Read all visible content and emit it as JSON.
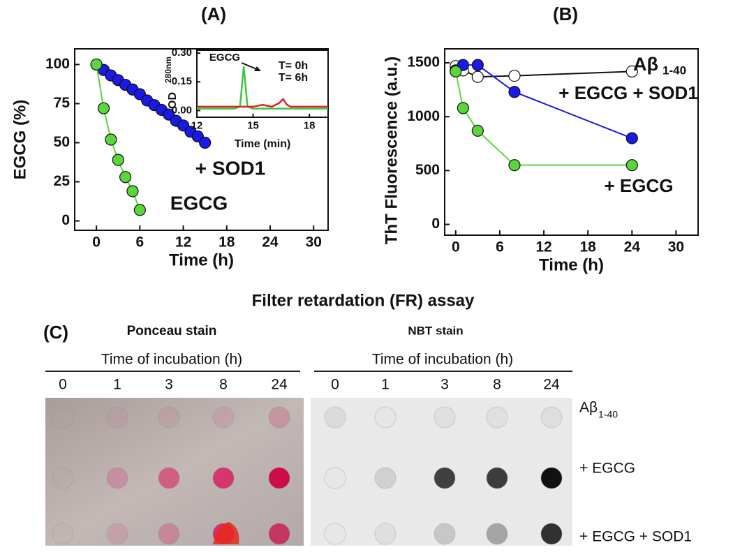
{
  "chart_data": [
    {
      "type": "line",
      "title": "(A)",
      "xlabel": "Time (h)",
      "ylabel": "EGCG (%)",
      "xlim": [
        -3,
        32
      ],
      "ylim": [
        -6,
        110
      ],
      "xticks": [
        0,
        6,
        12,
        18,
        24,
        30
      ],
      "yticks": [
        0,
        25,
        50,
        75,
        100
      ],
      "series": [
        {
          "name": "+ SOD1",
          "color": "#1a1ae6",
          "x": [
            0,
            1,
            2,
            3,
            4,
            5,
            6,
            7,
            8,
            9,
            10,
            11,
            12,
            13,
            14,
            15
          ],
          "values": [
            100,
            96.5,
            93,
            90,
            87,
            84,
            81,
            77,
            74,
            71,
            68,
            64,
            61,
            57,
            54,
            50
          ]
        },
        {
          "name": "EGCG",
          "color": "#5ad63c",
          "x": [
            0,
            1,
            2,
            3,
            4,
            5,
            6
          ],
          "values": [
            100,
            72,
            52,
            39,
            28,
            19,
            7
          ]
        }
      ]
    },
    {
      "type": "line",
      "xlabel": "Time (min)",
      "ylabel": "OD",
      "ylabel_sup": "280nm",
      "annotation": "EGCG",
      "xlim": [
        12,
        19
      ],
      "ylim": [
        -0.035,
        0.315
      ],
      "xticks": [
        12,
        15,
        18
      ],
      "yticks": [
        {
          "value": 0,
          "label": "0.00"
        },
        {
          "value": 0.15,
          "label": "0.15"
        },
        {
          "value": 0.3,
          "label": "0.30"
        }
      ],
      "series": [
        {
          "name": "T= 0h",
          "color": "#3cc83c",
          "x": [
            12,
            13,
            14,
            14.3,
            14.5,
            14.7,
            15,
            16,
            16.5,
            17,
            18,
            19
          ],
          "values": [
            0.01,
            0.01,
            0.01,
            0.02,
            0.23,
            0.02,
            0.01,
            0.01,
            0.01,
            0.01,
            0.01,
            0.01
          ]
        },
        {
          "name": "T= 6h",
          "color": "#e02020",
          "x": [
            12,
            13,
            14,
            15,
            15.5,
            16,
            16.4,
            16.6,
            16.8,
            17,
            18,
            19
          ],
          "values": [
            0.02,
            0.02,
            0.02,
            0.02,
            0.03,
            0.02,
            0.04,
            0.06,
            0.03,
            0.02,
            0.02,
            0.02
          ]
        }
      ]
    },
    {
      "type": "line",
      "title": "(B)",
      "xlabel": "Time (h)",
      "ylabel": "ThT Fluorescence (a.u.)",
      "xlim": [
        -1.5,
        33
      ],
      "ylim": [
        -100,
        1630
      ],
      "xticks": [
        0,
        6,
        12,
        18,
        24,
        30
      ],
      "yticks": [
        0,
        500,
        1000,
        1500
      ],
      "series": [
        {
          "name": "Aβ",
          "name_sub": "1-40",
          "color": "#ffffff",
          "x": [
            0,
            1,
            3,
            8,
            24
          ],
          "values": [
            1470,
            1430,
            1370,
            1380,
            1420
          ]
        },
        {
          "name": "+ EGCG + SOD1",
          "color": "#1a1ae6",
          "x": [
            0,
            1,
            3,
            8,
            24
          ],
          "values": [
            1430,
            1480,
            1480,
            1230,
            800
          ]
        },
        {
          "name": "+ EGCG",
          "color": "#5ad63c",
          "x": [
            0,
            1,
            3,
            8,
            24
          ],
          "values": [
            1420,
            1080,
            870,
            550,
            550
          ]
        }
      ]
    }
  ],
  "panel_c": {
    "heading": "Filter retardation (FR) assay",
    "label": "(C)",
    "blots": [
      {
        "stain": "Ponceau stain",
        "axis": "Time of incubation (h)",
        "times": [
          "0",
          "1",
          "3",
          "8",
          "24"
        ]
      },
      {
        "stain": "NBT stain",
        "axis": "Time of incubation (h)",
        "times": [
          "0",
          "1",
          "3",
          "8",
          "24"
        ]
      }
    ],
    "rows": [
      {
        "label": "Aβ",
        "sub": "1-40"
      },
      {
        "label": "+ EGCG"
      },
      {
        "label": "+ EGCG + SOD1"
      }
    ]
  }
}
